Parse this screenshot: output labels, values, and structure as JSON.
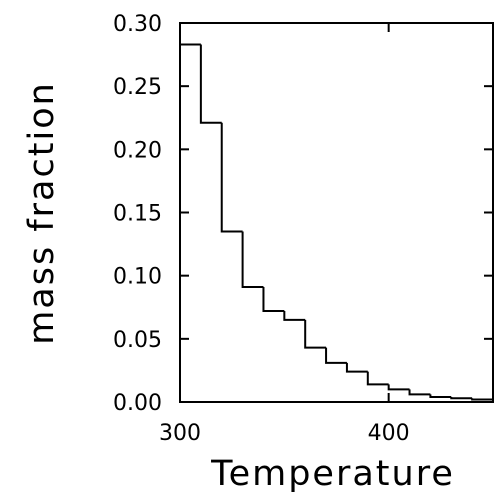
{
  "chart_data": {
    "type": "bar",
    "title": "",
    "xlabel": "Temperature",
    "ylabel": "mass fraction",
    "xlim": [
      300,
      450
    ],
    "ylim": [
      0.0,
      0.3
    ],
    "x_ticks": [
      {
        "value": 300,
        "label": "300"
      },
      {
        "value": 400,
        "label": "400"
      }
    ],
    "y_ticks": [
      {
        "value": 0.0,
        "label": "0.00"
      },
      {
        "value": 0.05,
        "label": "0.05"
      },
      {
        "value": 0.1,
        "label": "0.10"
      },
      {
        "value": 0.15,
        "label": "0.15"
      },
      {
        "value": 0.2,
        "label": "0.20"
      },
      {
        "value": 0.25,
        "label": "0.25"
      },
      {
        "value": 0.3,
        "label": "0.30"
      }
    ],
    "bin_edges": [
      300,
      310,
      320,
      330,
      340,
      350,
      360,
      370,
      380,
      390,
      400,
      410,
      420,
      430,
      440,
      450
    ],
    "values": [
      0.283,
      0.221,
      0.135,
      0.091,
      0.072,
      0.065,
      0.043,
      0.031,
      0.024,
      0.014,
      0.01,
      0.006,
      0.004,
      0.003,
      0.002
    ],
    "style": "step-histogram",
    "line_color": "#000000",
    "grid": false,
    "legend": "none"
  }
}
